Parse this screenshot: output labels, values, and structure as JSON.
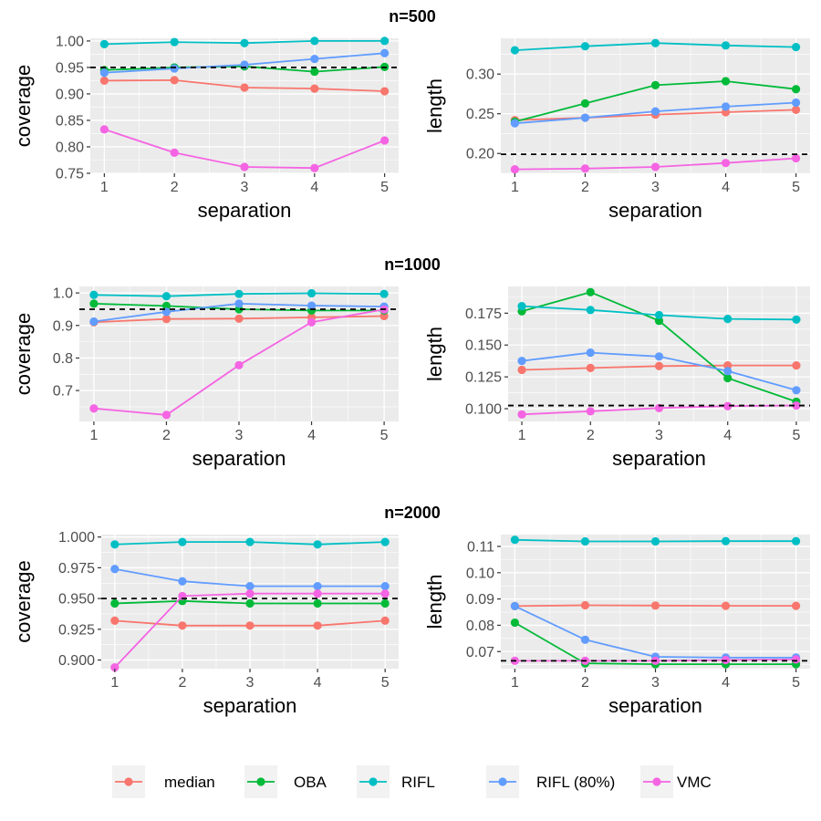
{
  "series_meta": [
    {
      "name": "median",
      "color": "#F8766D"
    },
    {
      "name": "OBA",
      "color": "#00BA38"
    },
    {
      "name": "RIFL",
      "color": "#00BFC4"
    },
    {
      "name": "RIFL (80%)",
      "color": "#619CFF"
    },
    {
      "name": "VMC",
      "color": "#F564E3"
    }
  ],
  "rows": [
    {
      "title": "n=500"
    },
    {
      "title": "n=1000"
    },
    {
      "title": "n=2000"
    }
  ],
  "chart_data": [
    {
      "type": "line",
      "row": 0,
      "col": 0,
      "xlabel": "separation",
      "ylabel": "coverage",
      "x": [
        1,
        2,
        3,
        4,
        5
      ],
      "xlim": [
        0.8,
        5.2
      ],
      "ylim": [
        0.75,
        1.005
      ],
      "yticks": [
        0.75,
        0.8,
        0.85,
        0.9,
        0.95,
        1.0
      ],
      "ytick_labels": [
        "0.75",
        "0.80",
        "0.85",
        "0.90",
        "0.95",
        "1.00"
      ],
      "reference_line": 0.95,
      "grid": true,
      "series": [
        {
          "name": "median",
          "values": [
            0.925,
            0.926,
            0.912,
            0.91,
            0.905
          ]
        },
        {
          "name": "OBA",
          "values": [
            0.945,
            0.95,
            0.952,
            0.942,
            0.951
          ]
        },
        {
          "name": "RIFL",
          "values": [
            0.994,
            0.998,
            0.996,
            1.0,
            1.0
          ]
        },
        {
          "name": "RIFL (80%)",
          "values": [
            0.94,
            0.948,
            0.955,
            0.966,
            0.977
          ]
        },
        {
          "name": "VMC",
          "values": [
            0.833,
            0.789,
            0.762,
            0.76,
            0.812
          ]
        }
      ]
    },
    {
      "type": "line",
      "row": 0,
      "col": 1,
      "xlabel": "separation",
      "ylabel": "length",
      "x": [
        1,
        2,
        3,
        4,
        5
      ],
      "xlim": [
        0.8,
        5.2
      ],
      "ylim": [
        0.175,
        0.345
      ],
      "yticks": [
        0.2,
        0.25,
        0.3
      ],
      "ytick_labels": [
        "0.20",
        "0.25",
        "0.30"
      ],
      "reference_line": 0.199,
      "grid": true,
      "series": [
        {
          "name": "median",
          "values": [
            0.242,
            0.245,
            0.249,
            0.252,
            0.255
          ]
        },
        {
          "name": "OBA",
          "values": [
            0.24,
            0.263,
            0.286,
            0.291,
            0.281
          ]
        },
        {
          "name": "RIFL",
          "values": [
            0.33,
            0.335,
            0.339,
            0.336,
            0.334
          ]
        },
        {
          "name": "RIFL (80%)",
          "values": [
            0.238,
            0.245,
            0.253,
            0.259,
            0.264
          ]
        },
        {
          "name": "VMC",
          "values": [
            0.18,
            0.181,
            0.183,
            0.188,
            0.194
          ]
        }
      ]
    },
    {
      "type": "line",
      "row": 1,
      "col": 0,
      "xlabel": "separation",
      "ylabel": "coverage",
      "x": [
        1,
        2,
        3,
        4,
        5
      ],
      "xlim": [
        0.8,
        5.2
      ],
      "ylim": [
        0.605,
        1.02
      ],
      "yticks": [
        0.7,
        0.8,
        0.9,
        1.0
      ],
      "ytick_labels": [
        "0.7",
        "0.8",
        "0.9",
        "1.0"
      ],
      "reference_line": 0.95,
      "grid": true,
      "series": [
        {
          "name": "median",
          "values": [
            0.91,
            0.92,
            0.921,
            0.925,
            0.929
          ]
        },
        {
          "name": "OBA",
          "values": [
            0.967,
            0.96,
            0.95,
            0.946,
            0.946
          ]
        },
        {
          "name": "RIFL",
          "values": [
            0.994,
            0.99,
            0.997,
            0.999,
            0.997
          ]
        },
        {
          "name": "RIFL (80%)",
          "values": [
            0.912,
            0.942,
            0.967,
            0.961,
            0.958
          ]
        },
        {
          "name": "VMC",
          "values": [
            0.645,
            0.625,
            0.778,
            0.91,
            0.949
          ]
        }
      ]
    },
    {
      "type": "line",
      "row": 1,
      "col": 1,
      "xlabel": "separation",
      "ylabel": "length",
      "x": [
        1,
        2,
        3,
        4,
        5
      ],
      "xlim": [
        0.8,
        5.2
      ],
      "ylim": [
        0.09,
        0.196
      ],
      "yticks": [
        0.1,
        0.125,
        0.15,
        0.175
      ],
      "ytick_labels": [
        "0.100",
        "0.125",
        "0.150",
        "0.175"
      ],
      "reference_line": 0.1025,
      "grid": true,
      "series": [
        {
          "name": "median",
          "values": [
            0.1305,
            0.132,
            0.1335,
            0.134,
            0.134
          ]
        },
        {
          "name": "OBA",
          "values": [
            0.1765,
            0.1915,
            0.169,
            0.124,
            0.1055
          ]
        },
        {
          "name": "RIFL",
          "values": [
            0.1805,
            0.1775,
            0.1735,
            0.1705,
            0.17
          ]
        },
        {
          "name": "RIFL (80%)",
          "values": [
            0.1375,
            0.144,
            0.141,
            0.1295,
            0.1145
          ]
        },
        {
          "name": "VMC",
          "values": [
            0.0955,
            0.098,
            0.1005,
            0.102,
            0.1025
          ]
        }
      ]
    },
    {
      "type": "line",
      "row": 2,
      "col": 0,
      "xlabel": "separation",
      "ylabel": "coverage",
      "x": [
        1,
        2,
        3,
        4,
        5
      ],
      "xlim": [
        0.8,
        5.2
      ],
      "ylim": [
        0.893,
        1.002
      ],
      "yticks": [
        0.9,
        0.925,
        0.95,
        0.975,
        1.0
      ],
      "ytick_labels": [
        "0.900",
        "0.925",
        "0.950",
        "0.975",
        "1.000"
      ],
      "reference_line": 0.95,
      "grid": true,
      "series": [
        {
          "name": "median",
          "values": [
            0.932,
            0.928,
            0.928,
            0.928,
            0.932
          ]
        },
        {
          "name": "OBA",
          "values": [
            0.946,
            0.948,
            0.946,
            0.946,
            0.946
          ]
        },
        {
          "name": "RIFL",
          "values": [
            0.994,
            0.996,
            0.996,
            0.994,
            0.996
          ]
        },
        {
          "name": "RIFL (80%)",
          "values": [
            0.974,
            0.964,
            0.96,
            0.96,
            0.96
          ]
        },
        {
          "name": "VMC",
          "values": [
            0.894,
            0.952,
            0.954,
            0.954,
            0.954
          ]
        }
      ]
    },
    {
      "type": "line",
      "row": 2,
      "col": 1,
      "xlabel": "separation",
      "ylabel": "length",
      "x": [
        1,
        2,
        3,
        4,
        5
      ],
      "xlim": [
        0.8,
        5.2
      ],
      "ylim": [
        0.0635,
        0.1145
      ],
      "yticks": [
        0.07,
        0.08,
        0.09,
        0.1,
        0.11
      ],
      "ytick_labels": [
        "0.07",
        "0.08",
        "0.09",
        "0.10",
        "0.11"
      ],
      "reference_line": 0.0665,
      "grid": true,
      "series": [
        {
          "name": "median",
          "values": [
            0.0873,
            0.0876,
            0.0875,
            0.0874,
            0.0874
          ]
        },
        {
          "name": "OBA",
          "values": [
            0.081,
            0.0655,
            0.0652,
            0.0652,
            0.0652
          ]
        },
        {
          "name": "RIFL",
          "values": [
            0.1125,
            0.1119,
            0.1119,
            0.112,
            0.112
          ]
        },
        {
          "name": "RIFL (80%)",
          "values": [
            0.0873,
            0.0745,
            0.068,
            0.0677,
            0.0677
          ]
        },
        {
          "name": "VMC",
          "values": [
            0.0665,
            0.0665,
            0.0665,
            0.0668,
            0.067
          ]
        }
      ]
    }
  ]
}
